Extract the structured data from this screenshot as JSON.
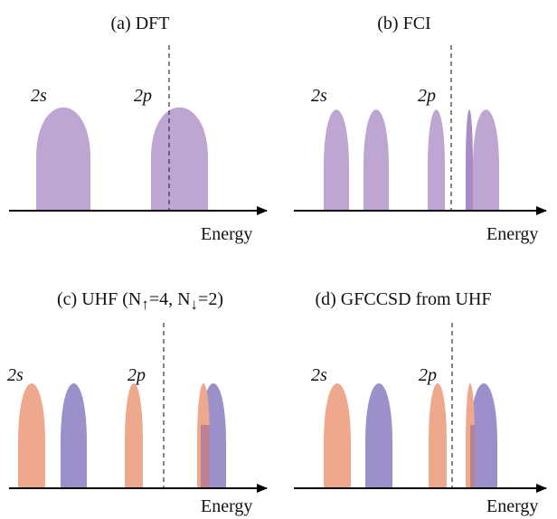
{
  "colors": {
    "purple": "#bda6d2",
    "purple_dark": "#a98cc6",
    "orange": "#eea88e",
    "blue": "#9c90cb",
    "overlap": "#bb8293",
    "axis": "#000000",
    "fermi": "#333333"
  },
  "panels": [
    {
      "title": "(a) DFT",
      "labels": {
        "s": "2s",
        "p": "2p"
      },
      "axis_label": "Energy"
    },
    {
      "title": "(b) FCI",
      "labels": {
        "s": "2s",
        "p": "2p"
      },
      "axis_label": "Energy"
    },
    {
      "title": "(c) UHF (N↑=4, N↓=2)",
      "title_parts": {
        "prefix": "(c) UHF (N",
        "up": "↑",
        "mid": "=4, N",
        "down": "↓",
        "suffix": "=2)"
      },
      "labels": {
        "s": "2s",
        "p": "2p"
      },
      "axis_label": "Energy"
    },
    {
      "title": "(d) GFCCSD from UHF",
      "labels": {
        "s": "2s",
        "p": "2p"
      },
      "axis_label": "Energy"
    }
  ]
}
